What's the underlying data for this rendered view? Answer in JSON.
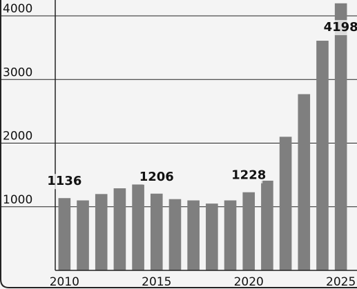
{
  "chart_data": {
    "type": "bar",
    "categories": [
      "2010",
      null,
      null,
      null,
      null,
      "2015",
      null,
      null,
      null,
      null,
      "2020",
      null,
      null,
      null,
      null,
      "2025"
    ],
    "values": [
      1136,
      1100,
      1200,
      1290,
      1350,
      1206,
      1120,
      1100,
      1050,
      1100,
      1228,
      1410,
      2100,
      2770,
      3610,
      4198
    ],
    "color": "#7f7f7f",
    "data_labels_every": 5,
    "ylim": [
      0,
      4250
    ],
    "yticks": [
      1000,
      2000,
      3000,
      4000
    ],
    "grid": true
  }
}
